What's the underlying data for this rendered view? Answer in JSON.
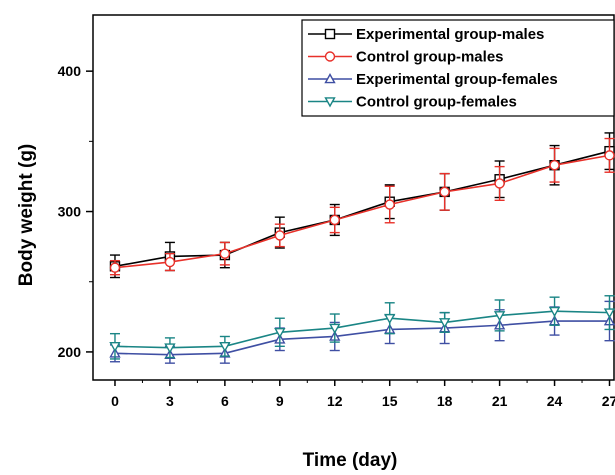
{
  "chart_data": {
    "type": "line",
    "title": "",
    "xlabel": "Time (day)",
    "ylabel": "Body weight (g)",
    "x": [
      0,
      3,
      6,
      9,
      12,
      15,
      18,
      21,
      24,
      27
    ],
    "xticks": [
      "0",
      "3",
      "6",
      "9",
      "12",
      "15",
      "18",
      "21",
      "24",
      "27"
    ],
    "yticks": [
      "200",
      "300",
      "400"
    ],
    "xlim": [
      -1.2,
      27.3
    ],
    "ylim": [
      180,
      440
    ],
    "grid": false,
    "legend_position": "top-right",
    "series": [
      {
        "name": "Experimental group-males",
        "color": "#000000",
        "marker": "square",
        "values": [
          261,
          268,
          269,
          285,
          294,
          307,
          314,
          323,
          333,
          343
        ],
        "errors": [
          8,
          10,
          9,
          11,
          11,
          12,
          13,
          13,
          14,
          13
        ]
      },
      {
        "name": "Control group-males",
        "color": "#e8312a",
        "marker": "circle",
        "values": [
          260,
          264,
          270,
          283,
          294,
          305,
          314,
          320,
          333,
          340
        ],
        "errors": [
          5,
          6,
          8,
          8,
          9,
          13,
          13,
          12,
          12,
          12
        ]
      },
      {
        "name": "Experimental group-females",
        "color": "#3f4fa3",
        "marker": "triangle-up",
        "values": [
          199,
          198,
          199,
          209,
          211,
          216,
          217,
          219,
          222,
          222
        ],
        "errors": [
          6,
          6,
          7,
          8,
          10,
          10,
          11,
          11,
          10,
          14
        ]
      },
      {
        "name": "Control group-females",
        "color": "#1a8585",
        "marker": "triangle-down",
        "values": [
          204,
          203,
          204,
          214,
          217,
          224,
          221,
          226,
          229,
          228
        ],
        "errors": [
          9,
          7,
          7,
          10,
          10,
          11,
          7,
          11,
          10,
          12
        ]
      }
    ]
  }
}
